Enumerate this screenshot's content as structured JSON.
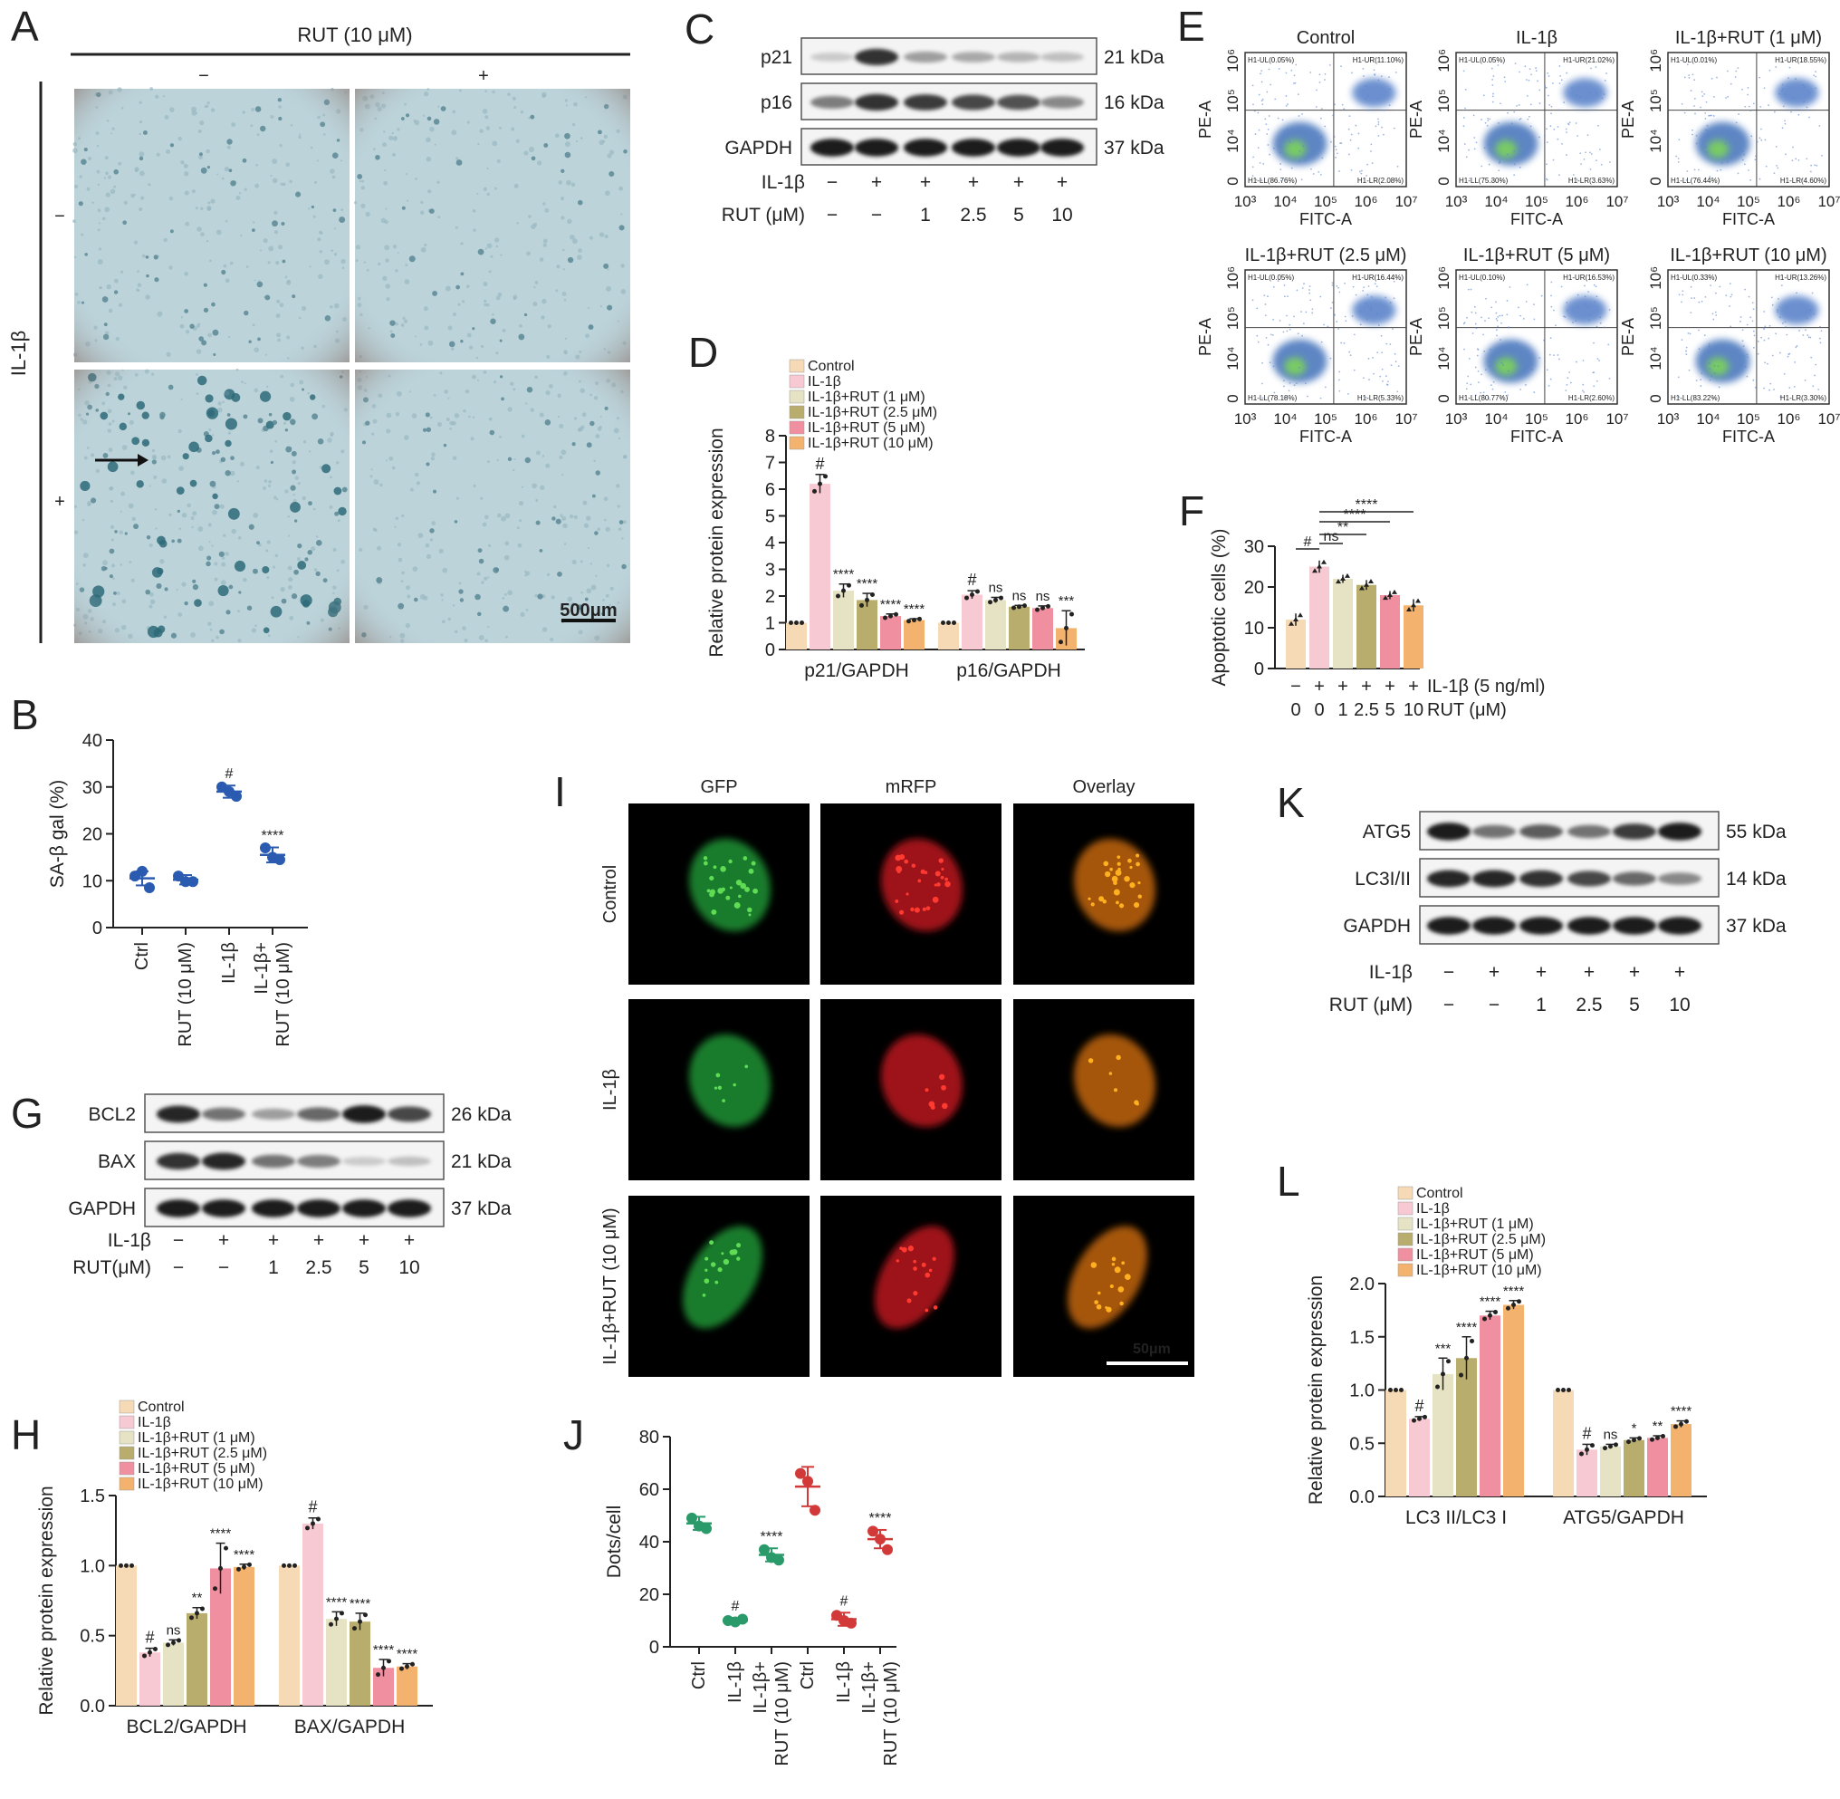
{
  "panelA": {
    "letter": "A",
    "header": "RUT (10 μM)",
    "col_signs": [
      "−",
      "+"
    ],
    "row_label": "IL-1β",
    "row_signs": [
      "−",
      "+"
    ],
    "scalebar": "500μm"
  },
  "panelC": {
    "letter": "C",
    "bands": [
      {
        "name": "p21",
        "kda": "21 kDa",
        "intensity": [
          0.15,
          0.85,
          0.35,
          0.3,
          0.25,
          0.2
        ]
      },
      {
        "name": "p16",
        "kda": "16 kDa",
        "intensity": [
          0.5,
          0.85,
          0.8,
          0.75,
          0.7,
          0.45
        ]
      },
      {
        "name": "GAPDH",
        "kda": "37 kDa",
        "intensity": [
          0.95,
          0.95,
          0.95,
          0.95,
          0.95,
          0.95
        ]
      }
    ],
    "treat_labels": [
      "IL-1β",
      "RUT (μM)"
    ],
    "il1b": [
      "−",
      "+",
      "+",
      "+",
      "+",
      "+"
    ],
    "rut": [
      "−",
      "−",
      "1",
      "2.5",
      "5",
      "10"
    ]
  },
  "panelE": {
    "letter": "E",
    "titles": [
      "Control",
      "IL-1β",
      "IL-1β+RUT (1 μM)",
      "IL-1β+RUT (2.5 μM)",
      "IL-1β+RUT (5 μM)",
      "IL-1β+RUT (10 μM)"
    ],
    "xlabel": "FITC-A",
    "ylabel": "PE-A",
    "xticks": [
      "10³",
      "10⁴",
      "10⁵",
      "10⁶",
      "10⁷"
    ],
    "yticks": [
      "0",
      "10⁴",
      "10⁵",
      "10⁶"
    ],
    "quadrants": [
      [
        "H1-UL(0.05%)",
        "H1-UR(11.10%)",
        "H1-LL(86.76%)",
        "H1-LR(2.08%)"
      ],
      [
        "H1-UL(0.05%)",
        "H1-UR(21.02%)",
        "H1-LL(75.30%)",
        "H1-LR(3.63%)"
      ],
      [
        "H1-UL(0.01%)",
        "H1-UR(18.55%)",
        "H1-LL(76.44%)",
        "H1-LR(4.60%)"
      ],
      [
        "H1-UL(0.05%)",
        "H1-UR(16.44%)",
        "H1-LL(78.18%)",
        "H1-LR(5.33%)"
      ],
      [
        "H1-UL(0.10%)",
        "H1-UR(16.53%)",
        "H1-LL(80.77%)",
        "H1-LR(2.60%)"
      ],
      [
        "H1-UL(0.33%)",
        "H1-UR(13.26%)",
        "H1-LL(83.22%)",
        "H1-LR(3.30%)"
      ]
    ]
  },
  "panelG": {
    "letter": "G",
    "bands": [
      {
        "name": "BCL2",
        "kda": "26 kDa",
        "intensity": [
          0.9,
          0.55,
          0.35,
          0.6,
          0.95,
          0.75
        ]
      },
      {
        "name": "BAX",
        "kda": "21 kDa",
        "intensity": [
          0.85,
          0.9,
          0.55,
          0.5,
          0.15,
          0.2
        ]
      },
      {
        "name": "GAPDH",
        "kda": "37 kDa",
        "intensity": [
          0.95,
          0.95,
          0.95,
          0.95,
          0.95,
          0.95
        ]
      }
    ],
    "treat_labels": [
      "IL-1β",
      "RUT(μM)"
    ],
    "il1b": [
      "−",
      "+",
      "+",
      "+",
      "+",
      "+"
    ],
    "rut": [
      "−",
      "−",
      "1",
      "2.5",
      "5",
      "10"
    ]
  },
  "panelI": {
    "letter": "I",
    "cols": [
      "GFP",
      "mRFP",
      "Overlay"
    ],
    "rows": [
      "Control",
      "IL-1β",
      "IL-1β+RUT (10 μM)"
    ],
    "scalebar": "50μm"
  },
  "panelK": {
    "letter": "K",
    "bands": [
      {
        "name": "ATG5",
        "kda": "55 kDa",
        "intensity": [
          0.95,
          0.55,
          0.65,
          0.55,
          0.8,
          0.95
        ]
      },
      {
        "name": "LC3I/II",
        "kda": "14 kDa",
        "intensity": [
          0.9,
          0.9,
          0.85,
          0.75,
          0.6,
          0.45
        ]
      },
      {
        "name": "GAPDH",
        "kda": "37 kDa",
        "intensity": [
          0.95,
          0.95,
          0.95,
          0.95,
          0.95,
          0.95
        ]
      }
    ],
    "treat_labels": [
      "IL-1β",
      "RUT (μM)"
    ],
    "il1b": [
      "−",
      "+",
      "+",
      "+",
      "+",
      "+"
    ],
    "rut": [
      "−",
      "−",
      "1",
      "2.5",
      "5",
      "10"
    ]
  },
  "colors": {
    "groups": [
      "#f6d9b5",
      "#f7c9d2",
      "#e6e3c4",
      "#b8ad6c",
      "#ef8fa0",
      "#f3b36f"
    ],
    "blue": "#2b5bb0",
    "green": "#2a9a6a",
    "red": "#d23a3a"
  },
  "chart_data": [
    {
      "panel": "B",
      "type": "scatter",
      "ylabel": "SA-β gal (%)",
      "ylim": [
        0,
        40
      ],
      "yticks": [
        0,
        10,
        20,
        30,
        40
      ],
      "categories": [
        "Ctrl",
        "RUT (10 μM)",
        "IL-1β",
        "IL-1β+\nRUT (10 μM)"
      ],
      "means": [
        10.5,
        10.2,
        29,
        15.5
      ],
      "sd": [
        1.5,
        1.0,
        1.3,
        1.6
      ],
      "points": [
        [
          11,
          12,
          8.5
        ],
        [
          11,
          9.8,
          9.8
        ],
        [
          30,
          29,
          28
        ],
        [
          17,
          15,
          14.5
        ]
      ],
      "annotations": [
        "",
        "",
        "#",
        "****"
      ]
    },
    {
      "panel": "D",
      "type": "bar",
      "ylabel": "Relative protein expression",
      "ylim": [
        0,
        8
      ],
      "yticks": [
        0,
        1,
        2,
        3,
        4,
        5,
        6,
        7,
        8
      ],
      "groups": [
        "p21/GAPDH",
        "p16/GAPDH"
      ],
      "series": [
        {
          "name": "Control",
          "values": [
            1.0,
            1.0
          ],
          "sd": [
            0,
            0
          ]
        },
        {
          "name": "IL-1β",
          "values": [
            6.2,
            2.05
          ],
          "sd": [
            0.35,
            0.15
          ]
        },
        {
          "name": "IL-1β+RUT (1 μM)",
          "values": [
            2.2,
            1.85
          ],
          "sd": [
            0.25,
            0.1
          ]
        },
        {
          "name": "IL-1β+RUT (2.5 μM)",
          "values": [
            1.85,
            1.6
          ],
          "sd": [
            0.25,
            0.05
          ]
        },
        {
          "name": "IL-1β+RUT (5 μM)",
          "values": [
            1.25,
            1.55
          ],
          "sd": [
            0.08,
            0.08
          ]
        },
        {
          "name": "IL-1β+RUT (10 μM)",
          "values": [
            1.1,
            0.8
          ],
          "sd": [
            0.05,
            0.65
          ]
        }
      ],
      "annotations": [
        [
          "",
          "#",
          "****",
          "****",
          "****",
          "****"
        ],
        [
          "",
          "#",
          "ns",
          "ns",
          "ns",
          "***"
        ]
      ]
    },
    {
      "panel": "F",
      "type": "bar",
      "ylabel": "Apoptotic cells (%)",
      "ylim": [
        0,
        30
      ],
      "yticks": [
        0,
        10,
        20,
        30
      ],
      "il1b_label": "IL-1β (5 ng/ml)",
      "rut_label": "RUT (μM)",
      "il1b": [
        "−",
        "+",
        "+",
        "+",
        "+",
        "+"
      ],
      "rut": [
        "0",
        "0",
        "1",
        "2.5",
        "5",
        "10"
      ],
      "values": [
        12,
        25,
        22,
        20.5,
        18,
        15.5
      ],
      "sd": [
        1.5,
        1.5,
        1.0,
        1.2,
        1.0,
        1.5
      ],
      "brackets": [
        "#",
        "ns",
        "**",
        "****",
        "****"
      ]
    },
    {
      "panel": "H",
      "type": "bar",
      "ylabel": "Relative protein expression",
      "ylim": [
        0,
        1.5
      ],
      "yticks": [
        0.0,
        0.5,
        1.0,
        1.5
      ],
      "groups": [
        "BCL2/GAPDH",
        "BAX/GAPDH"
      ],
      "series": [
        {
          "name": "Control",
          "values": [
            1.0,
            1.0
          ],
          "sd": [
            0,
            0
          ]
        },
        {
          "name": "IL-1β",
          "values": [
            0.38,
            1.3
          ],
          "sd": [
            0.03,
            0.04
          ]
        },
        {
          "name": "IL-1β+RUT (1 μM)",
          "values": [
            0.45,
            0.62
          ],
          "sd": [
            0.02,
            0.05
          ]
        },
        {
          "name": "IL-1β+RUT (2.5 μM)",
          "values": [
            0.66,
            0.6
          ],
          "sd": [
            0.04,
            0.06
          ]
        },
        {
          "name": "IL-1β+RUT (5 μM)",
          "values": [
            0.98,
            0.27
          ],
          "sd": [
            0.18,
            0.06
          ]
        },
        {
          "name": "IL-1β+RUT (10 μM)",
          "values": [
            0.99,
            0.28
          ],
          "sd": [
            0.02,
            0.02
          ]
        }
      ],
      "annotations": [
        [
          "",
          "#",
          "ns",
          "**",
          "****",
          "****"
        ],
        [
          "",
          "#",
          "****",
          "****",
          "****",
          "****"
        ]
      ]
    },
    {
      "panel": "J",
      "type": "scatter",
      "ylabel": "Dots/cell",
      "ylim": [
        0,
        80
      ],
      "yticks": [
        0,
        20,
        40,
        60,
        80
      ],
      "categories": [
        "Ctrl",
        "IL-1β",
        "IL-1β+\nRUT (10 μM)",
        "Ctrl",
        "IL-1β",
        "IL-1β+\nRUT (10 μM)"
      ],
      "means": [
        47,
        10,
        35,
        61,
        10.5,
        41
      ],
      "sd": [
        2.5,
        1.0,
        2.5,
        7.5,
        2.5,
        3.5
      ],
      "points": [
        [
          49,
          46,
          45
        ],
        [
          10,
          9.5,
          10.5
        ],
        [
          37,
          34,
          33
        ],
        [
          66,
          63,
          52
        ],
        [
          12,
          10,
          9
        ],
        [
          44,
          41,
          37
        ]
      ],
      "annotations": [
        "",
        "#",
        "****",
        "",
        "#",
        "****"
      ]
    },
    {
      "panel": "L",
      "type": "bar",
      "ylabel": "Relative protein expression",
      "ylim": [
        0,
        2.0
      ],
      "yticks": [
        0.0,
        0.5,
        1.0,
        1.5,
        2.0
      ],
      "groups": [
        "LC3 II/LC3 I",
        "ATG5/GAPDH"
      ],
      "series": [
        {
          "name": "Control",
          "values": [
            1.0,
            1.0
          ],
          "sd": [
            0,
            0
          ]
        },
        {
          "name": "IL-1β",
          "values": [
            0.73,
            0.44
          ],
          "sd": [
            0.02,
            0.05
          ]
        },
        {
          "name": "IL-1β+RUT (1 μM)",
          "values": [
            1.15,
            0.47
          ],
          "sd": [
            0.15,
            0.02
          ]
        },
        {
          "name": "IL-1β+RUT (2.5 μM)",
          "values": [
            1.3,
            0.53
          ],
          "sd": [
            0.2,
            0.02
          ]
        },
        {
          "name": "IL-1β+RUT (5 μM)",
          "values": [
            1.7,
            0.55
          ],
          "sd": [
            0.04,
            0.02
          ]
        },
        {
          "name": "IL-1β+RUT (10 μM)",
          "values": [
            1.8,
            0.68
          ],
          "sd": [
            0.04,
            0.03
          ]
        }
      ],
      "annotations": [
        [
          "",
          "#",
          "***",
          "****",
          "****",
          "****"
        ],
        [
          "",
          "#",
          "ns",
          "*",
          "**",
          "****"
        ]
      ]
    }
  ]
}
